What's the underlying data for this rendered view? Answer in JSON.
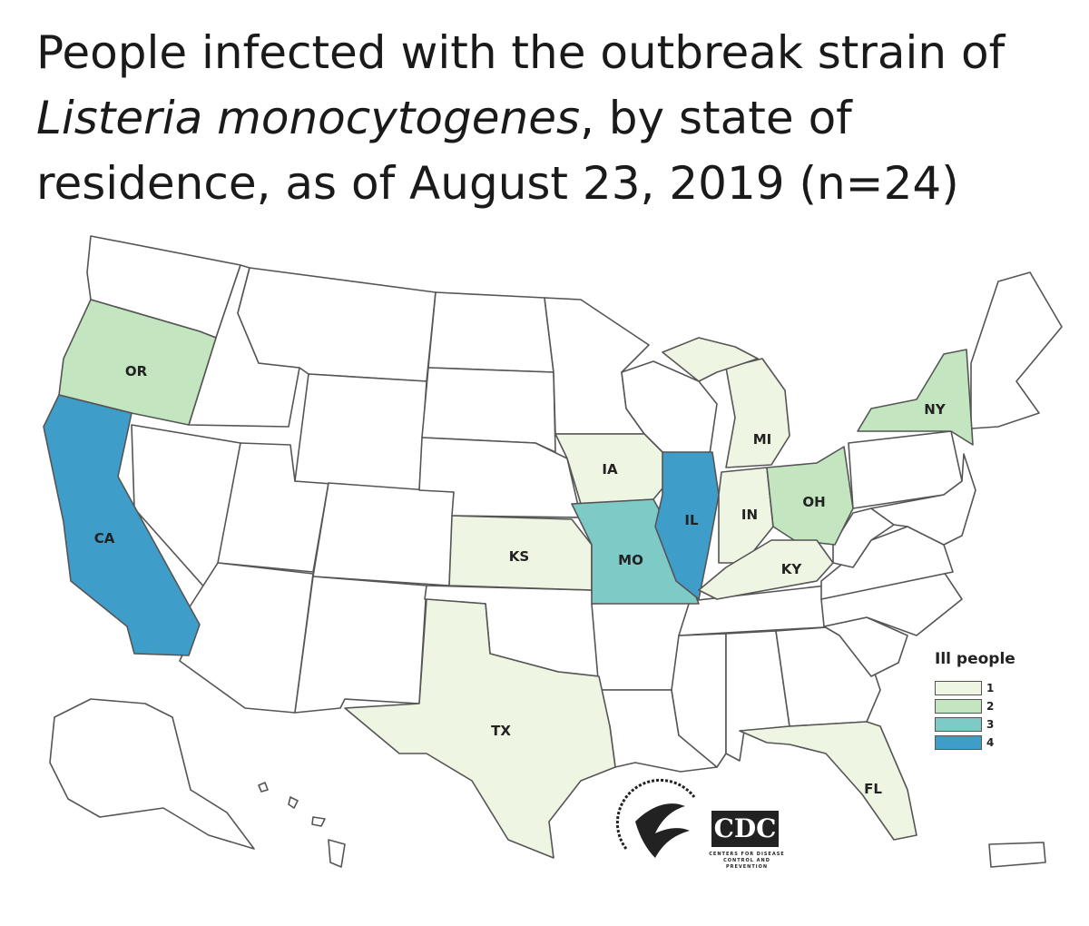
{
  "title": {
    "part1": "People infected with the outbreak strain of ",
    "italic": "Listeria monocytogenes",
    "part2": ", by state of residence, as of August 23, 2019 (n=24)"
  },
  "colors": {
    "none": "#ffffff",
    "level1": "#eef5e2",
    "level2": "#c3e6c1",
    "level3": "#7ecac6",
    "level4": "#3f9dc9",
    "border": "#555555"
  },
  "states": {
    "CA": {
      "label": "CA",
      "ill_people": 4
    },
    "IL": {
      "label": "IL",
      "ill_people": 4
    },
    "MO": {
      "label": "MO",
      "ill_people": 3
    },
    "OR": {
      "label": "OR",
      "ill_people": 2
    },
    "NY": {
      "label": "NY",
      "ill_people": 2
    },
    "OH": {
      "label": "OH",
      "ill_people": 2
    },
    "MI": {
      "label": "MI",
      "ill_people": 1
    },
    "IA": {
      "label": "IA",
      "ill_people": 1
    },
    "IN": {
      "label": "IN",
      "ill_people": 1
    },
    "KS": {
      "label": "KS",
      "ill_people": 1
    },
    "KY": {
      "label": "KY",
      "ill_people": 1
    },
    "TX": {
      "label": "TX",
      "ill_people": 1
    },
    "FL": {
      "label": "FL",
      "ill_people": 1
    }
  },
  "legend": {
    "title": "Ill people",
    "items": [
      {
        "value": "1",
        "color": "#eef5e2"
      },
      {
        "value": "2",
        "color": "#c3e6c1"
      },
      {
        "value": "3",
        "color": "#7ecac6"
      },
      {
        "value": "4",
        "color": "#3f9dc9"
      }
    ]
  },
  "logos": {
    "cdc": "CDC",
    "cdc_sub": "CENTERS FOR DISEASE CONTROL AND PREVENTION",
    "hhs": "DEPARTMENT OF HEALTH & HUMAN SERVICES USA"
  }
}
